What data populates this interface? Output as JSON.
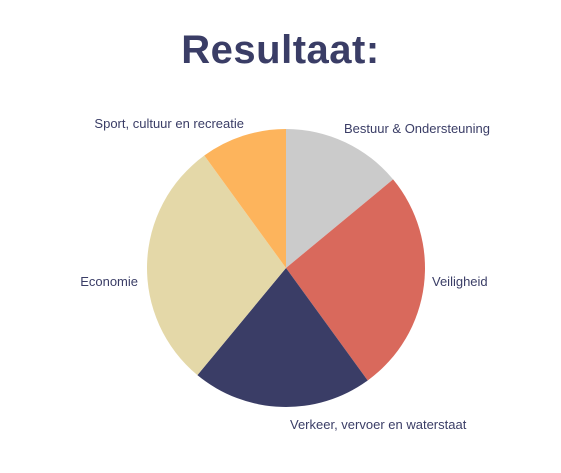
{
  "chart_data": {
    "type": "pie",
    "title": "Resultaat:",
    "slices": [
      {
        "label": "Bestuur & Ondersteuning",
        "value": 14,
        "color": "#cbcbcb"
      },
      {
        "label": "Veiligheid",
        "value": 26,
        "color": "#d9695c"
      },
      {
        "label": "Verkeer, vervoer en waterstaat",
        "value": 21,
        "color": "#3a3d66"
      },
      {
        "label": "Economie",
        "value": 29,
        "color": "#e4d8a8"
      },
      {
        "label": "Sport, cultuur en recreatie",
        "value": 10,
        "color": "#fdb45c"
      }
    ],
    "legend": "none"
  }
}
